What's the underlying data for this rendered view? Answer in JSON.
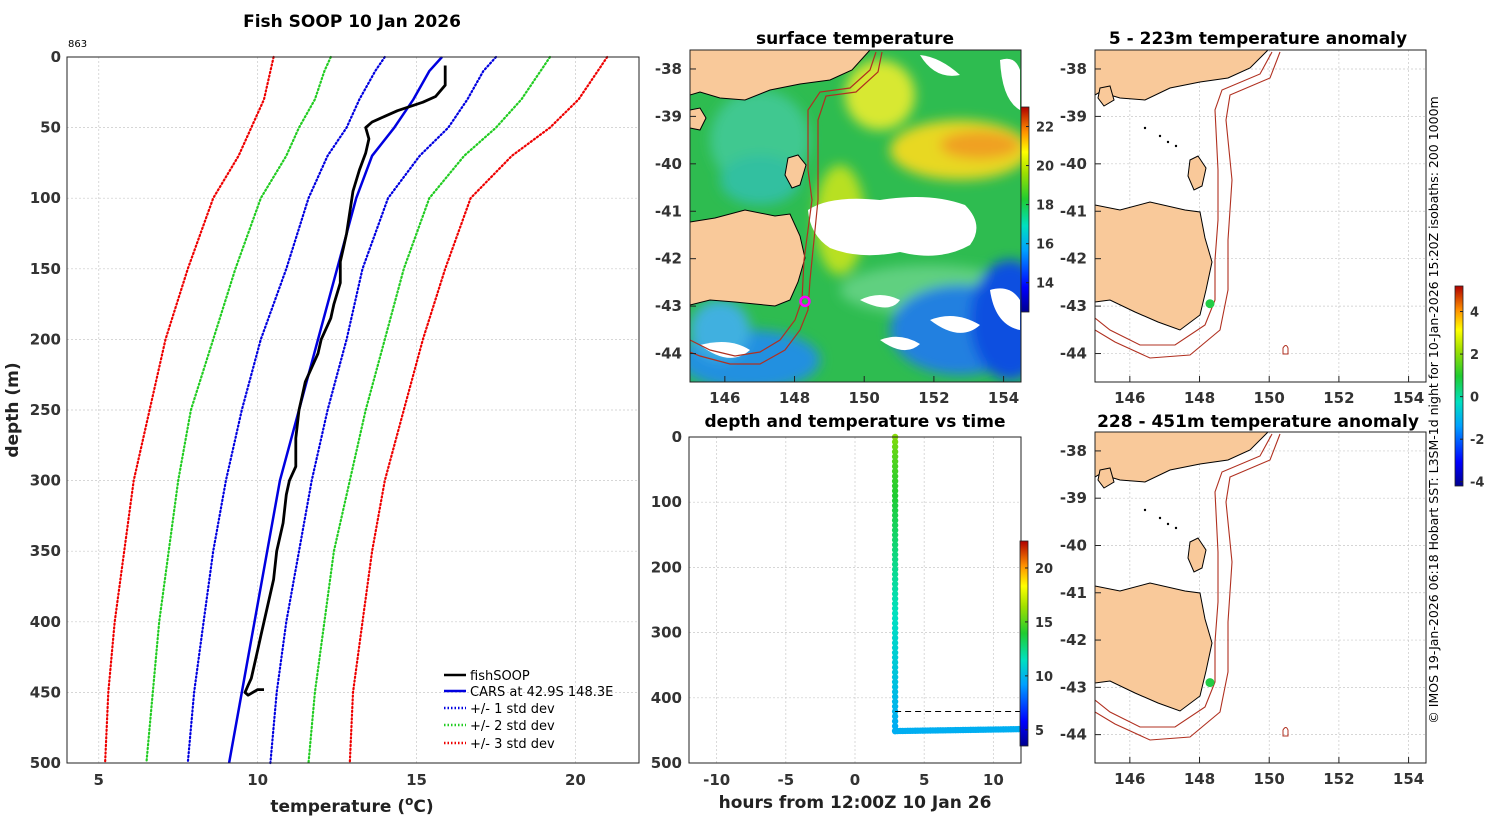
{
  "chart_data": [
    {
      "type": "line",
      "title": "Fish SOOP 10 Jan 2026",
      "xlabel": "temperature (°C)",
      "xlabel_main": "temperature (",
      "xlabel_sup": "o",
      "xlabel_unit": "C)",
      "ylabel": "depth (m)",
      "corner_note": "863",
      "xlim": [
        4,
        22
      ],
      "ylim": [
        500,
        0
      ],
      "xticks": [
        5,
        10,
        15,
        20
      ],
      "yticks": [
        0,
        50,
        100,
        150,
        200,
        250,
        300,
        350,
        400,
        450,
        500
      ],
      "legend": [
        "fishSOOP",
        "CARS at 42.9S 148.3E",
        "+/- 1 std dev",
        "+/- 2 std dev",
        "+/- 3 std dev"
      ],
      "legend_position": "bottom-right",
      "depths": [
        0,
        10,
        30,
        50,
        70,
        100,
        150,
        200,
        250,
        300,
        350,
        400,
        450,
        500
      ],
      "series": [
        {
          "name": "CARS at 42.9S 148.3E",
          "color": "#0000e0",
          "style": "solid",
          "values": [
            15.8,
            15.4,
            14.9,
            14.3,
            13.6,
            13.1,
            12.5,
            11.9,
            11.3,
            10.7,
            10.3,
            9.9,
            9.5,
            9.1
          ]
        },
        {
          "name": "+1 std dev",
          "color": "#0000e0",
          "style": "dotted",
          "values": [
            17.5,
            17.1,
            16.6,
            16.0,
            15.1,
            14.1,
            13.3,
            12.8,
            12.2,
            11.7,
            11.3,
            10.9,
            10.6,
            10.4
          ]
        },
        {
          "name": "-1 std dev",
          "color": "#0000e0",
          "style": "dotted",
          "values": [
            14.0,
            13.7,
            13.2,
            12.8,
            12.2,
            11.6,
            10.9,
            10.1,
            9.5,
            9.0,
            8.6,
            8.3,
            8.0,
            7.8
          ]
        },
        {
          "name": "+2 std dev",
          "color": "#22cc22",
          "style": "dotted",
          "values": [
            19.2,
            18.9,
            18.3,
            17.5,
            16.5,
            15.4,
            14.6,
            14.0,
            13.4,
            12.9,
            12.4,
            12.1,
            11.8,
            11.6
          ]
        },
        {
          "name": "-2 std dev",
          "color": "#22cc22",
          "style": "dotted",
          "values": [
            12.3,
            12.1,
            11.8,
            11.3,
            10.9,
            10.1,
            9.3,
            8.6,
            7.9,
            7.5,
            7.2,
            6.9,
            6.7,
            6.5
          ]
        },
        {
          "name": "+3 std dev",
          "color": "#ee0000",
          "style": "dotted",
          "values": [
            21.0,
            20.7,
            20.1,
            19.2,
            18.0,
            16.7,
            15.9,
            15.2,
            14.6,
            14.0,
            13.6,
            13.3,
            13.0,
            12.9
          ]
        },
        {
          "name": "-3 std dev",
          "color": "#ee0000",
          "style": "dotted",
          "values": [
            10.5,
            10.4,
            10.2,
            9.8,
            9.4,
            8.6,
            7.8,
            7.1,
            6.6,
            6.1,
            5.8,
            5.5,
            5.3,
            5.2
          ]
        }
      ],
      "fishsoop": {
        "name": "fishSOOP",
        "color": "#000000",
        "temps": [
          15.9,
          15.9,
          15.6,
          15.2,
          14.8,
          14.4,
          14.0,
          13.6,
          13.4,
          13.5,
          13.4,
          13.2,
          13.0,
          12.9,
          12.8,
          12.7,
          12.6,
          12.6,
          12.4,
          12.3,
          12.2,
          12.0,
          11.9,
          11.7,
          11.5,
          11.4,
          11.3,
          11.2,
          11.2,
          11.0,
          10.9,
          10.8,
          10.6,
          10.5,
          10.4,
          10.3,
          10.2,
          10.1,
          10.0,
          9.9,
          9.8,
          9.7,
          9.6,
          9.7,
          10.0,
          10.2
        ],
        "depths": [
          6,
          20,
          28,
          32,
          35,
          38,
          42,
          46,
          50,
          58,
          68,
          80,
          95,
          110,
          125,
          135,
          145,
          160,
          175,
          185,
          190,
          200,
          210,
          220,
          230,
          240,
          250,
          270,
          290,
          300,
          310,
          330,
          350,
          370,
          380,
          390,
          400,
          410,
          420,
          430,
          440,
          445,
          450,
          452,
          448,
          448
        ]
      }
    },
    {
      "type": "heatmap",
      "title": "surface temperature",
      "xticks": [
        146,
        148,
        150,
        152,
        154
      ],
      "yticks": [
        -38,
        -39,
        -40,
        -41,
        -42,
        -43,
        -44
      ],
      "xlim": [
        145,
        154.5
      ],
      "ylim": [
        -44.6,
        -37.6
      ],
      "colorbar_ticks": [
        14,
        16,
        18,
        20,
        22
      ],
      "colorbar_range": [
        12.5,
        23
      ],
      "station": {
        "lon": 148.3,
        "lat": -42.9
      }
    },
    {
      "type": "scatter",
      "title": "depth and temperature vs time",
      "xlabel": "hours from 12:00Z 10 Jan 26",
      "xticks": [
        -10,
        -5,
        0,
        5,
        10
      ],
      "yticks": [
        0,
        100,
        200,
        300,
        400,
        500
      ],
      "xlim": [
        -12,
        12
      ],
      "ylim": [
        500,
        0
      ],
      "reference_depth": 421,
      "colorbar_ticks": [
        5,
        10,
        15,
        20
      ],
      "colorbar_range": [
        3.5,
        22.5
      ],
      "descent": {
        "hour": 2.9,
        "depth_start": 0,
        "depth_end": 451,
        "temp_start": 16,
        "temp_end": 9.6
      },
      "bottom": {
        "hour_start": 2.9,
        "hour_end": 12,
        "depth_start": 451,
        "depth_end": 448,
        "temp": 9.7
      }
    },
    {
      "type": "heatmap",
      "title": "5 - 223m temperature anomaly",
      "xticks": [
        146,
        148,
        150,
        152,
        154
      ],
      "yticks": [
        -38,
        -39,
        -40,
        -41,
        -42,
        -43,
        -44
      ],
      "station": {
        "lon": 148.3,
        "lat": -42.95
      }
    },
    {
      "type": "heatmap",
      "title": "228 - 451m temperature anomaly",
      "xticks": [
        146,
        148,
        150,
        152,
        154
      ],
      "yticks": [
        -38,
        -39,
        -40,
        -41,
        -42,
        -43,
        -44
      ],
      "station": {
        "lon": 148.3,
        "lat": -42.9
      },
      "colorbar_ticks": [
        -4,
        -2,
        0,
        2,
        4
      ],
      "colorbar_range": [
        -4.2,
        5.2
      ]
    }
  ],
  "side_caption": "© IMOS 19-Jan-2026 06:18 Hobart SST: L3SM-1d night for 10-Jan-2026 15:20Z isobaths: 200  1000m",
  "colors": {
    "land": "#f9c99a",
    "station_sst": "#ff00ff",
    "station_anom": "#22cc44",
    "isobath": "#b03020"
  }
}
